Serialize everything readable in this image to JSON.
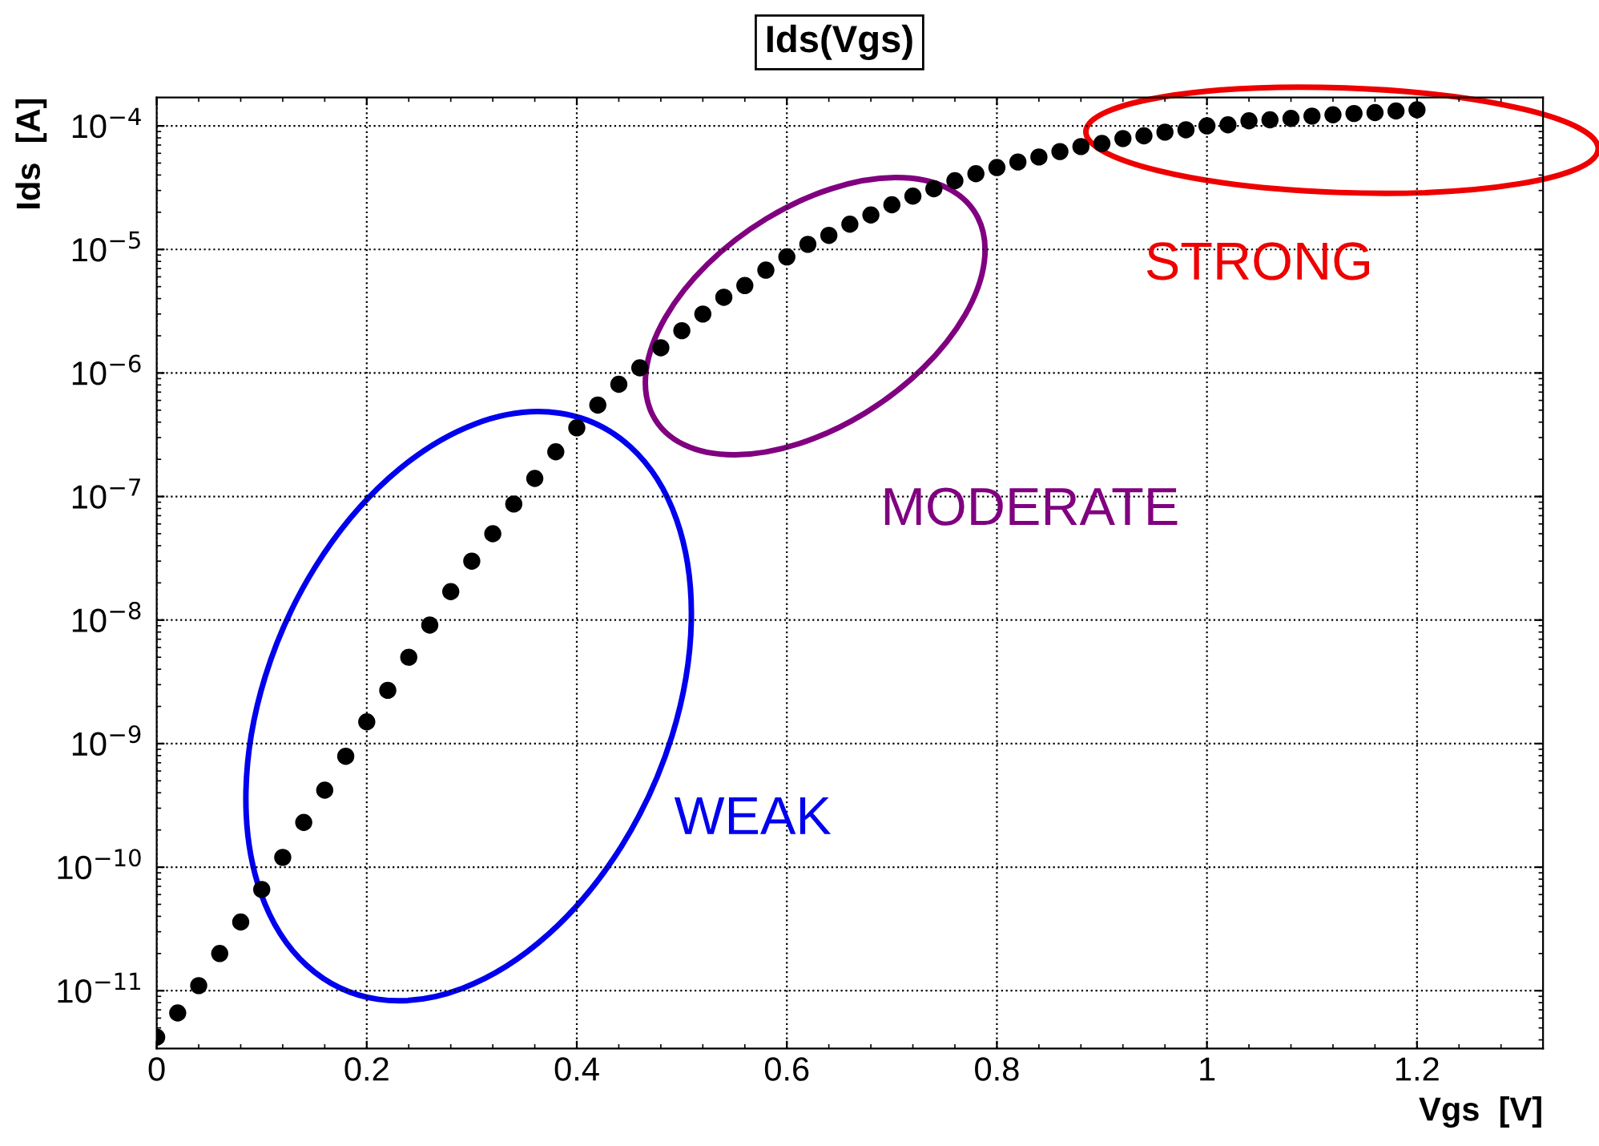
{
  "chart_data": {
    "type": "scatter",
    "title": "Ids(Vgs)",
    "xlabel": "Vgs  [V]",
    "ylabel": "Ids  [A]",
    "log": "y",
    "grid": true,
    "marker": "circle",
    "xlim": [
      0,
      1.32
    ],
    "xticks": [
      0,
      0.2,
      0.4,
      0.6,
      0.8,
      1,
      1.2
    ],
    "ylim": [
      3.4e-12,
      0.00017
    ],
    "yticks": [
      {
        "value": 1e-11,
        "label": "10$^{−11}$"
      },
      {
        "value": 1e-10,
        "label": "10$^{−10}$"
      },
      {
        "value": 1e-09,
        "label": "10$^{−9}$"
      },
      {
        "value": 1e-08,
        "label": "10$^{−8}$"
      },
      {
        "value": 1e-07,
        "label": "10$^{−7}$"
      },
      {
        "value": 1e-06,
        "label": "10$^{−6}$"
      },
      {
        "value": 1e-05,
        "label": "10$^{−5}$"
      },
      {
        "value": 0.0001,
        "label": "10$^{−4}$"
      }
    ],
    "x": [
      0,
      0.02,
      0.04,
      0.06,
      0.08,
      0.1,
      0.12,
      0.14,
      0.16,
      0.18,
      0.2,
      0.22,
      0.24,
      0.26,
      0.28,
      0.3,
      0.32,
      0.34,
      0.36,
      0.38,
      0.4,
      0.42,
      0.44,
      0.46,
      0.48,
      0.5,
      0.52,
      0.54,
      0.56,
      0.58,
      0.6,
      0.62,
      0.64,
      0.66,
      0.68,
      0.7,
      0.72,
      0.74,
      0.76,
      0.78,
      0.8,
      0.82,
      0.84,
      0.86,
      0.88,
      0.9,
      0.92,
      0.94,
      0.96,
      0.98,
      1,
      1.02,
      1.04,
      1.06,
      1.08,
      1.1,
      1.12,
      1.14,
      1.16,
      1.18,
      1.2
    ],
    "series": [
      {
        "color": "#000000",
        "values": [
          4.2e-12,
          6.6e-12,
          1.1e-11,
          2e-11,
          3.6e-11,
          6.6e-11,
          1.2e-10,
          2.3e-10,
          4.2e-10,
          7.9e-10,
          1.5e-09,
          2.7e-09,
          5e-09,
          9.1e-09,
          1.7e-08,
          3e-08,
          5e-08,
          8.7e-08,
          1.4e-07,
          2.3e-07,
          3.6e-07,
          5.5e-07,
          8.1e-07,
          1.1e-06,
          1.6e-06,
          2.2e-06,
          3e-06,
          4.1e-06,
          5.1e-06,
          6.8e-06,
          8.7e-06,
          1.1e-05,
          1.3e-05,
          1.6e-05,
          1.9e-05,
          2.3e-05,
          2.7e-05,
          3.1e-05,
          3.6e-05,
          4.1e-05,
          4.6e-05,
          5.1e-05,
          5.6e-05,
          6.2e-05,
          6.8e-05,
          7.2e-05,
          7.9e-05,
          8.3e-05,
          8.9e-05,
          9.3e-05,
          0.0001,
          0.000102,
          0.00011,
          0.000112,
          0.000115,
          0.00012,
          0.000123,
          0.000126,
          0.000128,
          0.000132,
          0.000135
        ]
      }
    ],
    "annotations": [
      "WEAK",
      "MODERATE",
      "STRONG"
    ]
  }
}
